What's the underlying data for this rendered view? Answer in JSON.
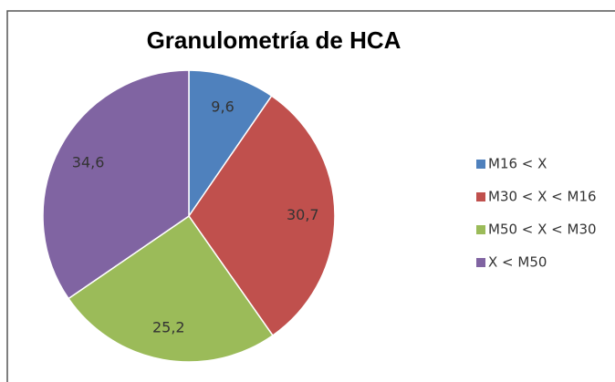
{
  "chart_data": {
    "type": "pie",
    "title": "Granulometría de HCA",
    "categories": [
      "M16 < X",
      "M30 < X < M16",
      "M50 < X < M30",
      "X < M50"
    ],
    "values": [
      9.6,
      30.7,
      25.2,
      34.6
    ],
    "value_labels": [
      "9,6",
      "30,7",
      "25,2",
      "34,6"
    ],
    "colors": [
      "#4f81bd",
      "#c0504d",
      "#9bbb59",
      "#8064a2"
    ],
    "legend": "right"
  }
}
